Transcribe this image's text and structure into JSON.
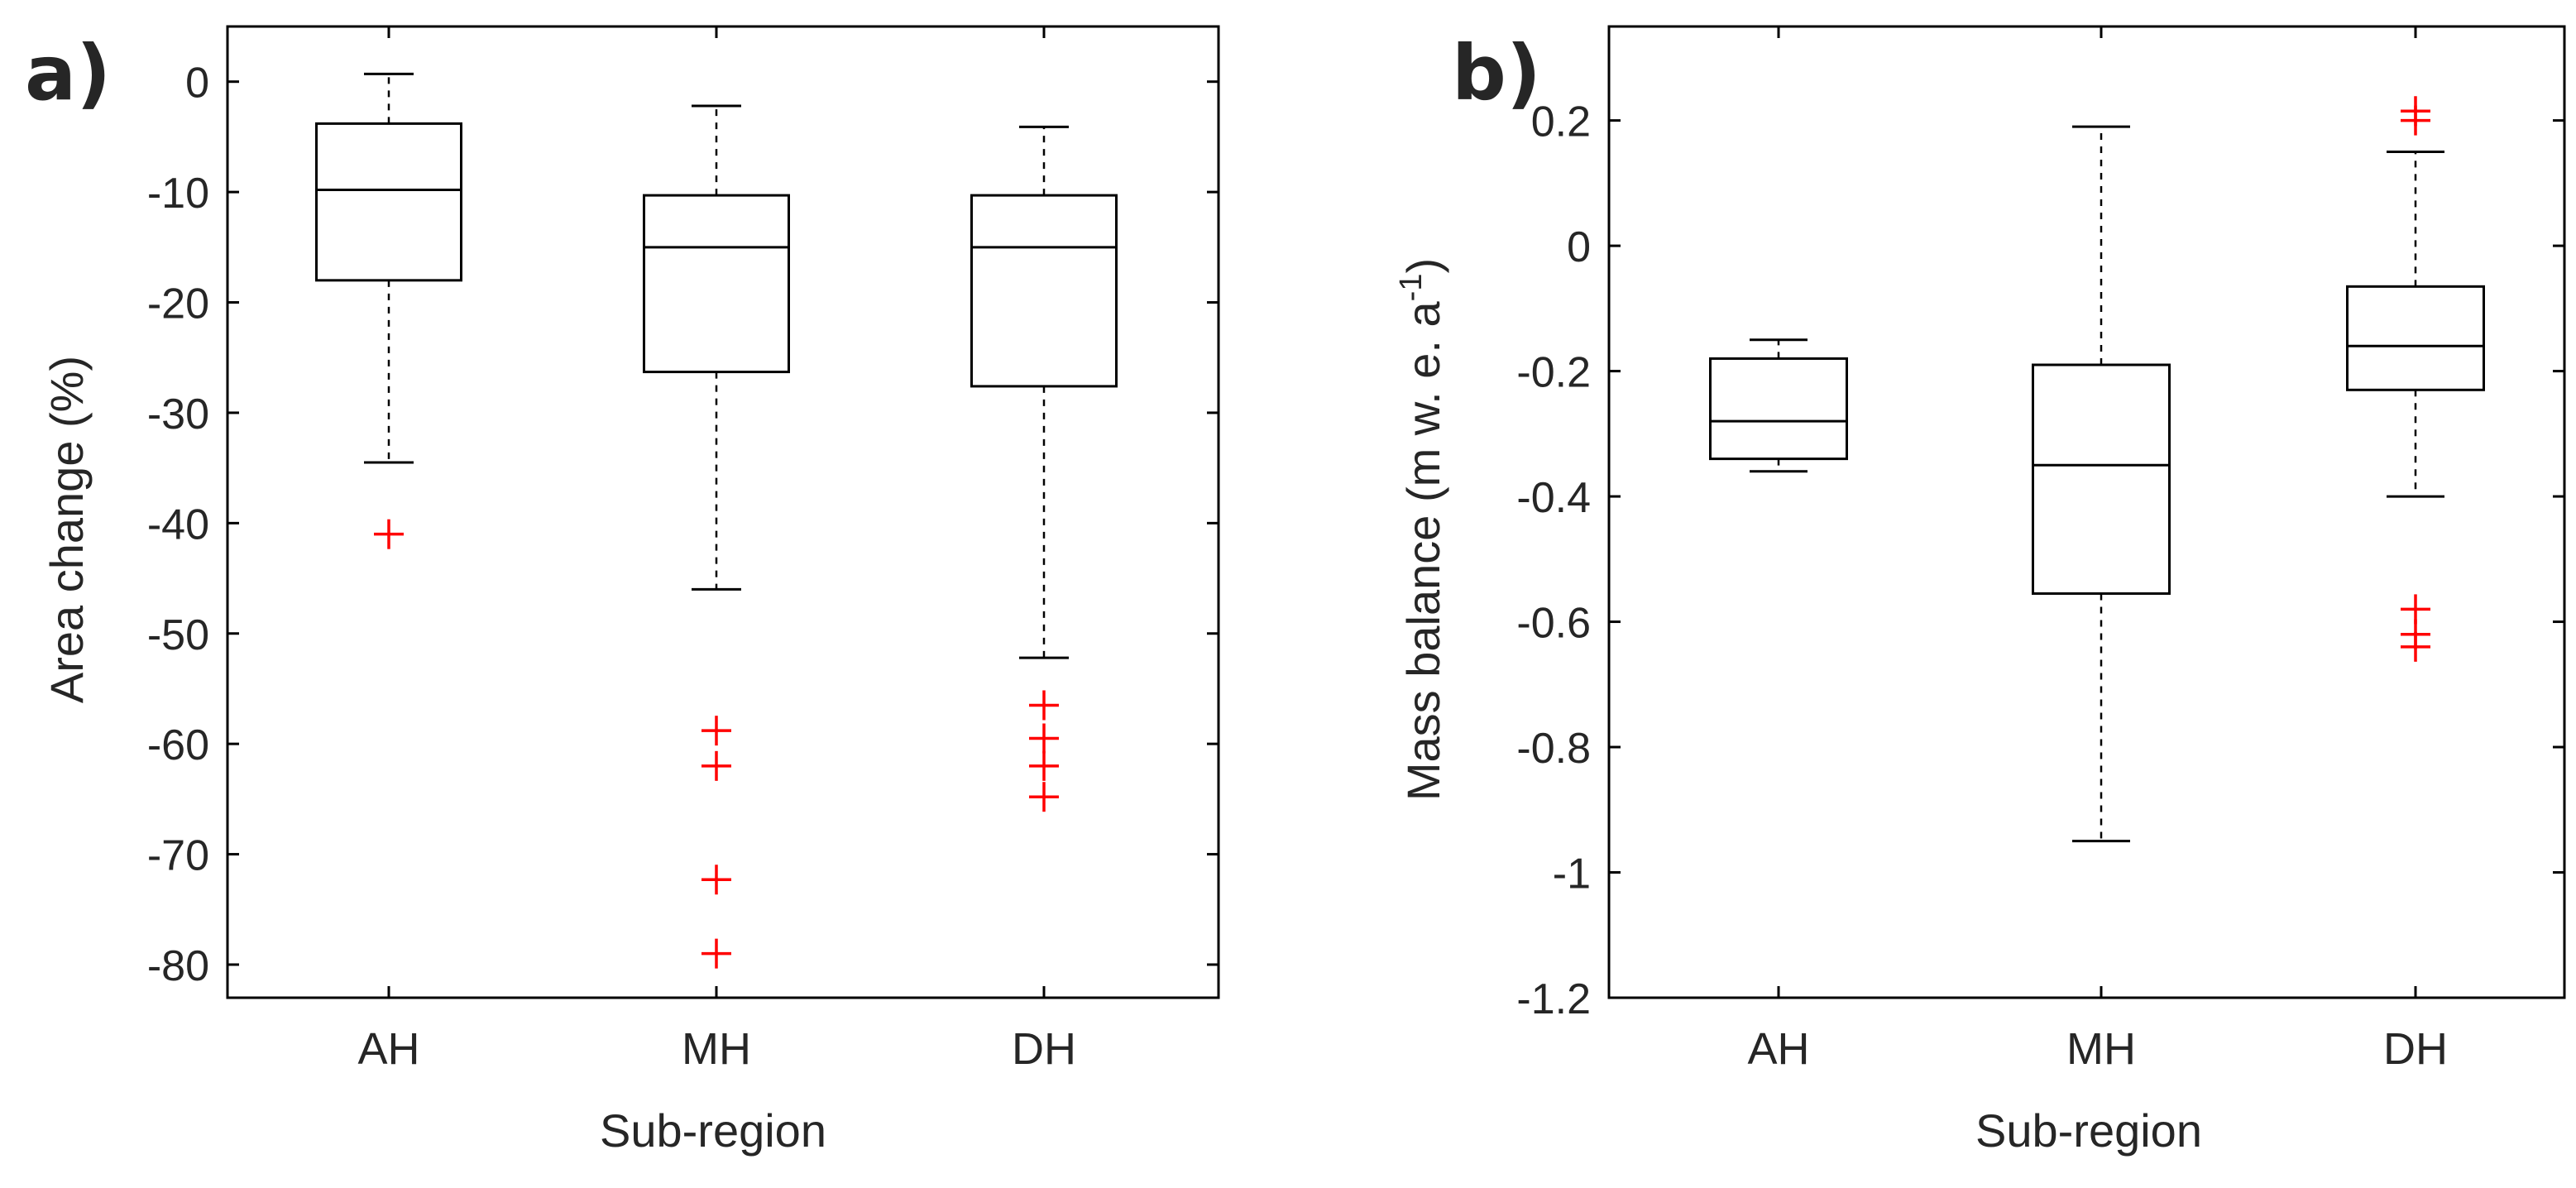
{
  "chart_data": [
    {
      "type": "boxplot",
      "panel_label": "a)",
      "xlabel": "Sub-region",
      "ylabel": "Area change (%)",
      "ylabel_sup": "",
      "ylabel_suffix": "",
      "ylim": [
        -83,
        5
      ],
      "yticks": [
        0,
        -10,
        -20,
        -30,
        -40,
        -50,
        -60,
        -70,
        -80
      ],
      "ytick_labels": [
        "0",
        "-10",
        "-20",
        "-30",
        "-40",
        "-50",
        "-60",
        "-70",
        "-80"
      ],
      "categories": [
        "AH",
        "MH",
        "DH"
      ],
      "boxes": [
        {
          "category": "AH",
          "whisker_low": -34.5,
          "q1": -18,
          "median": -9.8,
          "q3": -3.8,
          "whisker_high": 0.7,
          "outliers": [
            -41
          ]
        },
        {
          "category": "MH",
          "whisker_low": -46,
          "q1": -26.3,
          "median": -15,
          "q3": -10.3,
          "whisker_high": -2.2,
          "outliers": [
            -58.8,
            -62,
            -72.3,
            -79
          ]
        },
        {
          "category": "DH",
          "whisker_low": -52.2,
          "q1": -27.6,
          "median": -15,
          "q3": -10.3,
          "whisker_high": -4.1,
          "outliers": [
            -56.5,
            -59.5,
            -62,
            -64.8
          ]
        }
      ],
      "colors": {
        "box": "#000000",
        "outlier": "#ff0000"
      }
    },
    {
      "type": "boxplot",
      "panel_label": "b)",
      "xlabel": "Sub-region",
      "ylabel": "Mass balance (m w. e. a",
      "ylabel_sup": "-1",
      "ylabel_suffix": ")",
      "ylim": [
        -1.2,
        0.35
      ],
      "yticks": [
        0.2,
        0,
        -0.2,
        -0.4,
        -0.6,
        -0.8,
        -1,
        -1.2
      ],
      "ytick_labels": [
        "0.2",
        "0",
        "-0.2",
        "-0.4",
        "-0.6",
        "-0.8",
        "-1",
        "-1.2"
      ],
      "categories": [
        "AH",
        "MH",
        "DH"
      ],
      "boxes": [
        {
          "category": "AH",
          "whisker_low": -0.36,
          "q1": -0.34,
          "median": -0.28,
          "q3": -0.18,
          "whisker_high": -0.15,
          "outliers": []
        },
        {
          "category": "MH",
          "whisker_low": -0.95,
          "q1": -0.555,
          "median": -0.35,
          "q3": -0.19,
          "whisker_high": 0.19,
          "outliers": []
        },
        {
          "category": "DH",
          "whisker_low": -0.4,
          "q1": -0.23,
          "median": -0.16,
          "q3": -0.065,
          "whisker_high": 0.15,
          "outliers": [
            0.2,
            0.215,
            -0.58,
            -0.62,
            -0.64
          ]
        }
      ],
      "colors": {
        "box": "#000000",
        "outlier": "#ff0000"
      }
    }
  ]
}
